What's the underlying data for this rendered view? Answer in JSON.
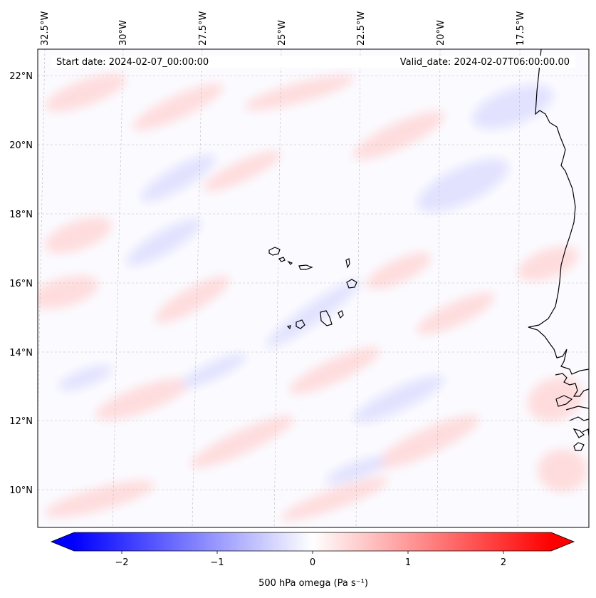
{
  "map": {
    "start_date_label": "Start date: 2024-02-07_00:00:00",
    "valid_date_label": "Valid_date: 2024-02-07T06:00:00.00",
    "lon_ticks": [
      "32.5°W",
      "30°W",
      "27.5°W",
      "25°W",
      "22.5°W",
      "20°W",
      "17.5°W"
    ],
    "lat_ticks": [
      "22°N",
      "20°N",
      "18°N",
      "16°N",
      "14°N",
      "12°N",
      "10°N"
    ],
    "field": "500 hPa omega",
    "colormap": "bwr",
    "colors": {
      "negative": "#0000ff",
      "zero": "#ffffff",
      "positive": "#ff0000",
      "coastline": "#000000",
      "grid": "#bbbbbb"
    }
  },
  "colorbar": {
    "label": "500 hPa omega (Pa s⁻¹)",
    "ticks": [
      "−2",
      "−1",
      "0",
      "1",
      "2"
    ],
    "range": [
      -2.5,
      2.5
    ],
    "extend": "both"
  }
}
